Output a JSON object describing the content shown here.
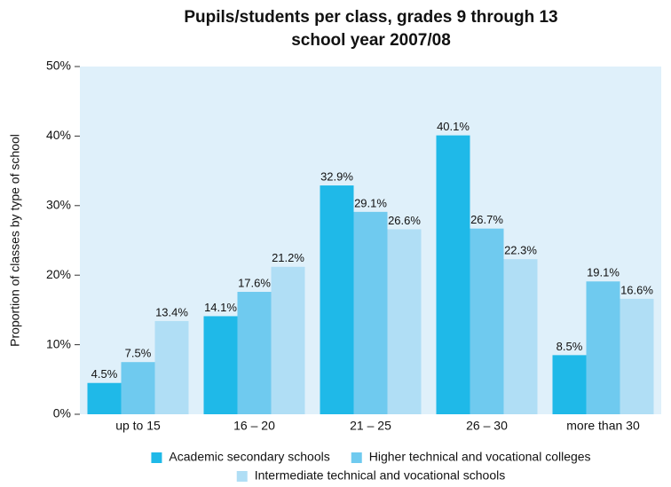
{
  "chart_data": {
    "type": "bar",
    "title": "Pupils/students per class, grades 9 through 13",
    "subtitle": "school year 2007/08",
    "y_label": "Proportion of classes by type of school",
    "categories": [
      "up to 15",
      "16 – 20",
      "21 – 25",
      "26 – 30",
      "more than 30"
    ],
    "series": [
      {
        "name": "Academic secondary schools",
        "color": "#1fb9e8",
        "values": [
          4.5,
          14.1,
          32.9,
          40.1,
          8.5
        ],
        "value_labels": [
          "4.5%",
          "14.1%",
          "32.9%",
          "40.1%",
          "8.5%"
        ]
      },
      {
        "name": "Higher technical and vocational colleges",
        "color": "#6fcaef",
        "values": [
          7.5,
          17.6,
          29.1,
          26.7,
          19.1
        ],
        "value_labels": [
          "7.5%",
          "17.6%",
          "29.1%",
          "26.7%",
          "19.1%"
        ]
      },
      {
        "name": "Intermediate technical and vocational schools",
        "color": "#b0def5",
        "values": [
          13.4,
          21.2,
          26.6,
          22.3,
          16.6
        ],
        "value_labels": [
          "13.4%",
          "21.2%",
          "26.6%",
          "22.3%",
          "16.6%"
        ]
      }
    ],
    "ylim": [
      0,
      50
    ],
    "yticks": [
      {
        "value": 0,
        "label": "0%"
      },
      {
        "value": 10,
        "label": "10%"
      },
      {
        "value": 20,
        "label": "20%"
      },
      {
        "value": 30,
        "label": "30%"
      },
      {
        "value": 40,
        "label": "40%"
      },
      {
        "value": 50,
        "label": "50%"
      }
    ],
    "grid": false,
    "legend": "bottom"
  }
}
